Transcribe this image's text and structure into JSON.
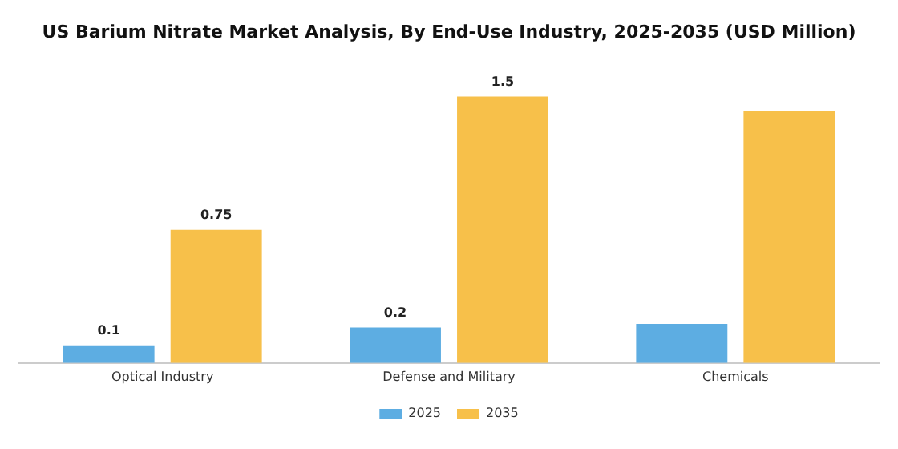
{
  "chart_data": {
    "type": "bar",
    "title": "US Barium Nitrate Market Analysis, By End-Use Industry, 2025-2035 (USD Million)",
    "categories": [
      "Optical Industry",
      "Defense and Military",
      "Chemicals"
    ],
    "series": [
      {
        "name": "2025",
        "color": "#5dade2",
        "values": [
          0.1,
          0.2,
          0.22
        ],
        "value_labels": [
          "0.1",
          "0.2",
          null
        ]
      },
      {
        "name": "2035",
        "color": "#f7c04a",
        "values": [
          0.75,
          1.5,
          1.42
        ],
        "value_labels": [
          "0.75",
          "1.5",
          null
        ]
      }
    ],
    "grid": false,
    "legend": "bottom"
  }
}
